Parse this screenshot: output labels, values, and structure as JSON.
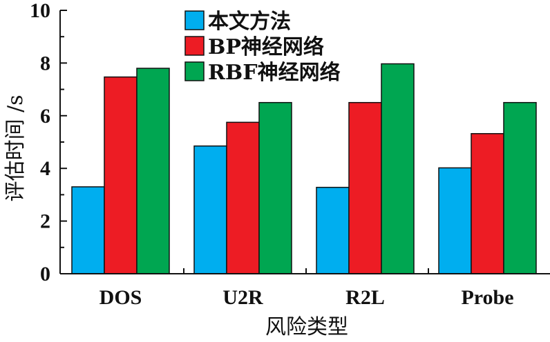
{
  "chart_data": {
    "type": "bar",
    "categories": [
      "DOS",
      "U2R",
      "R2L",
      "Probe"
    ],
    "series": [
      {
        "name": "本文方法",
        "color": "#00AEEF",
        "values": [
          3.3,
          4.85,
          3.28,
          4.02
        ]
      },
      {
        "name": "BP神经网络",
        "color": "#ED1C24",
        "values": [
          7.47,
          5.75,
          6.5,
          5.32
        ]
      },
      {
        "name": "RBF神经网络",
        "color": "#00A651",
        "values": [
          7.8,
          6.5,
          7.97,
          6.5
        ]
      }
    ],
    "xlabel": "风险类型",
    "ylabel": "评估时间 /s",
    "ylim": [
      0,
      10
    ],
    "yticks": [
      "0",
      "2",
      "4",
      "6",
      "8",
      "10"
    ],
    "legend_position": "top-center",
    "grid": false
  }
}
